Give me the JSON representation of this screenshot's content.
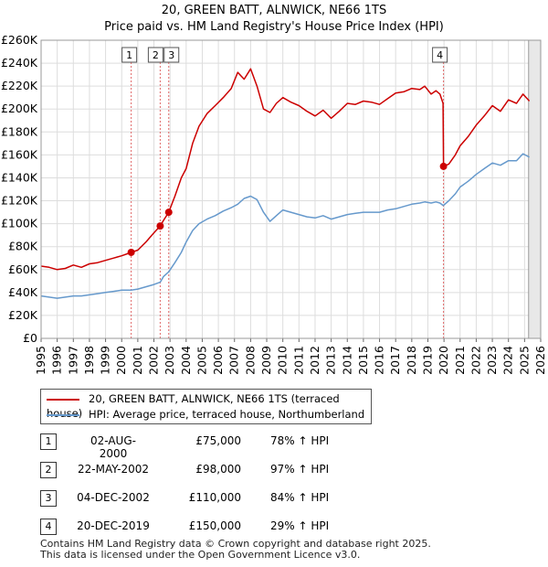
{
  "chart_data": {
    "type": "line",
    "title": "20, GREEN BATT, ALNWICK, NE66 1TS",
    "subtitle": "Price paid vs. HM Land Registry's House Price Index (HPI)",
    "xlabel": "",
    "ylabel": "",
    "xlim": [
      1995,
      2026
    ],
    "ylim": [
      0,
      260000
    ],
    "x_ticks": [
      "1995",
      "1996",
      "1997",
      "1998",
      "1999",
      "2000",
      "2001",
      "2002",
      "2003",
      "2004",
      "2005",
      "2006",
      "2007",
      "2008",
      "2009",
      "2010",
      "2011",
      "2012",
      "2013",
      "2014",
      "2015",
      "2016",
      "2017",
      "2018",
      "2019",
      "2020",
      "2021",
      "2022",
      "2023",
      "2024",
      "2025",
      "2026"
    ],
    "y_ticks": [
      {
        "value": 0,
        "label": "£0"
      },
      {
        "value": 20000,
        "label": "£20K"
      },
      {
        "value": 40000,
        "label": "£40K"
      },
      {
        "value": 60000,
        "label": "£60K"
      },
      {
        "value": 80000,
        "label": "£80K"
      },
      {
        "value": 100000,
        "label": "£100K"
      },
      {
        "value": 120000,
        "label": "£120K"
      },
      {
        "value": 140000,
        "label": "£140K"
      },
      {
        "value": 160000,
        "label": "£160K"
      },
      {
        "value": 180000,
        "label": "£180K"
      },
      {
        "value": 200000,
        "label": "£200K"
      },
      {
        "value": 220000,
        "label": "£220K"
      },
      {
        "value": 240000,
        "label": "£240K"
      },
      {
        "value": 260000,
        "label": "£260K"
      }
    ],
    "grid": true,
    "series": [
      {
        "name": "20, GREEN BATT, ALNWICK, NE66 1TS (terraced house)",
        "color": "#cc0000",
        "points": [
          [
            1995.0,
            63000
          ],
          [
            1995.5,
            62000
          ],
          [
            1996.0,
            60000
          ],
          [
            1996.5,
            61000
          ],
          [
            1997.0,
            64000
          ],
          [
            1997.5,
            62000
          ],
          [
            1998.0,
            65000
          ],
          [
            1998.5,
            66000
          ],
          [
            1999.0,
            68000
          ],
          [
            1999.5,
            70000
          ],
          [
            2000.0,
            72000
          ],
          [
            2000.59,
            75000
          ],
          [
            2001.0,
            77000
          ],
          [
            2001.5,
            84000
          ],
          [
            2002.0,
            92000
          ],
          [
            2002.39,
            98000
          ],
          [
            2002.6,
            103000
          ],
          [
            2002.92,
            110000
          ],
          [
            2003.3,
            124000
          ],
          [
            2003.7,
            140000
          ],
          [
            2004.0,
            148000
          ],
          [
            2004.4,
            170000
          ],
          [
            2004.8,
            185000
          ],
          [
            2005.3,
            196000
          ],
          [
            2005.8,
            203000
          ],
          [
            2006.3,
            210000
          ],
          [
            2006.8,
            218000
          ],
          [
            2007.2,
            232000
          ],
          [
            2007.6,
            226000
          ],
          [
            2008.0,
            235000
          ],
          [
            2008.4,
            220000
          ],
          [
            2008.8,
            200000
          ],
          [
            2009.2,
            197000
          ],
          [
            2009.6,
            205000
          ],
          [
            2010.0,
            210000
          ],
          [
            2010.5,
            206000
          ],
          [
            2011.0,
            203000
          ],
          [
            2011.5,
            198000
          ],
          [
            2012.0,
            194000
          ],
          [
            2012.5,
            199000
          ],
          [
            2013.0,
            192000
          ],
          [
            2013.5,
            198000
          ],
          [
            2014.0,
            205000
          ],
          [
            2014.5,
            204000
          ],
          [
            2015.0,
            207000
          ],
          [
            2015.5,
            206000
          ],
          [
            2016.0,
            204000
          ],
          [
            2016.5,
            209000
          ],
          [
            2017.0,
            214000
          ],
          [
            2017.5,
            215000
          ],
          [
            2018.0,
            218000
          ],
          [
            2018.5,
            217000
          ],
          [
            2018.8,
            220000
          ],
          [
            2019.2,
            213000
          ],
          [
            2019.5,
            216000
          ],
          [
            2019.75,
            213000
          ],
          [
            2019.94,
            205000
          ],
          [
            2019.97,
            150000
          ],
          [
            2020.3,
            152000
          ],
          [
            2020.7,
            160000
          ],
          [
            2021.0,
            168000
          ],
          [
            2021.5,
            176000
          ],
          [
            2022.0,
            186000
          ],
          [
            2022.5,
            194000
          ],
          [
            2023.0,
            203000
          ],
          [
            2023.5,
            198000
          ],
          [
            2024.0,
            208000
          ],
          [
            2024.5,
            205000
          ],
          [
            2024.9,
            213000
          ],
          [
            2025.3,
            207000
          ]
        ]
      },
      {
        "name": "HPI: Average price, terraced house, Northumberland",
        "color": "#6699cc",
        "points": [
          [
            1995.0,
            37000
          ],
          [
            1995.5,
            36000
          ],
          [
            1996.0,
            35000
          ],
          [
            1996.5,
            36000
          ],
          [
            1997.0,
            37000
          ],
          [
            1997.5,
            37000
          ],
          [
            1998.0,
            38000
          ],
          [
            1998.5,
            39000
          ],
          [
            1999.0,
            40000
          ],
          [
            1999.5,
            41000
          ],
          [
            2000.0,
            42000
          ],
          [
            2000.59,
            42000
          ],
          [
            2001.0,
            43000
          ],
          [
            2001.5,
            45000
          ],
          [
            2002.0,
            47000
          ],
          [
            2002.39,
            49000
          ],
          [
            2002.6,
            54000
          ],
          [
            2002.92,
            58000
          ],
          [
            2003.3,
            66000
          ],
          [
            2003.7,
            75000
          ],
          [
            2004.0,
            84000
          ],
          [
            2004.4,
            94000
          ],
          [
            2004.8,
            100000
          ],
          [
            2005.3,
            104000
          ],
          [
            2005.8,
            107000
          ],
          [
            2006.3,
            111000
          ],
          [
            2006.8,
            114000
          ],
          [
            2007.2,
            117000
          ],
          [
            2007.6,
            122000
          ],
          [
            2008.0,
            124000
          ],
          [
            2008.4,
            121000
          ],
          [
            2008.8,
            110000
          ],
          [
            2009.2,
            102000
          ],
          [
            2009.6,
            107000
          ],
          [
            2010.0,
            112000
          ],
          [
            2010.5,
            110000
          ],
          [
            2011.0,
            108000
          ],
          [
            2011.5,
            106000
          ],
          [
            2012.0,
            105000
          ],
          [
            2012.5,
            107000
          ],
          [
            2013.0,
            104000
          ],
          [
            2013.5,
            106000
          ],
          [
            2014.0,
            108000
          ],
          [
            2014.5,
            109000
          ],
          [
            2015.0,
            110000
          ],
          [
            2015.5,
            110000
          ],
          [
            2016.0,
            110000
          ],
          [
            2016.5,
            112000
          ],
          [
            2017.0,
            113000
          ],
          [
            2017.5,
            115000
          ],
          [
            2018.0,
            117000
          ],
          [
            2018.5,
            118000
          ],
          [
            2018.8,
            119000
          ],
          [
            2019.2,
            118000
          ],
          [
            2019.5,
            119000
          ],
          [
            2019.75,
            118000
          ],
          [
            2019.94,
            116000
          ],
          [
            2019.97,
            116000
          ],
          [
            2020.3,
            120000
          ],
          [
            2020.7,
            126000
          ],
          [
            2021.0,
            132000
          ],
          [
            2021.5,
            137000
          ],
          [
            2022.0,
            143000
          ],
          [
            2022.5,
            148000
          ],
          [
            2023.0,
            153000
          ],
          [
            2023.5,
            151000
          ],
          [
            2024.0,
            155000
          ],
          [
            2024.5,
            155000
          ],
          [
            2024.9,
            161000
          ],
          [
            2025.3,
            158000
          ]
        ]
      }
    ],
    "sales": [
      {
        "num": "1",
        "date": "02-AUG-2000",
        "x": 2000.59,
        "price": 75000,
        "price_label": "£75,000",
        "hpi": "78% ↑ HPI"
      },
      {
        "num": "2",
        "date": "22-MAY-2002",
        "x": 2002.39,
        "price": 98000,
        "price_label": "£98,000",
        "hpi": "97% ↑ HPI"
      },
      {
        "num": "3",
        "date": "04-DEC-2002",
        "x": 2002.92,
        "price": 110000,
        "price_label": "£110,000",
        "hpi": "84% ↑ HPI"
      },
      {
        "num": "4",
        "date": "20-DEC-2019",
        "x": 2019.97,
        "price": 150000,
        "price_label": "£150,000",
        "hpi": "29% ↑ HPI"
      }
    ],
    "forecast_start": 2025.25
  },
  "legend": {
    "property_label": "20, GREEN BATT, ALNWICK, NE66 1TS (terraced house)",
    "hpi_label": "HPI: Average price, terraced house, Northumberland",
    "property_color": "#cc0000",
    "hpi_color": "#6699cc"
  },
  "footer": {
    "line1": "Contains HM Land Registry data © Crown copyright and database right 2025.",
    "line2": "This data is licensed under the Open Government Licence v3.0."
  }
}
